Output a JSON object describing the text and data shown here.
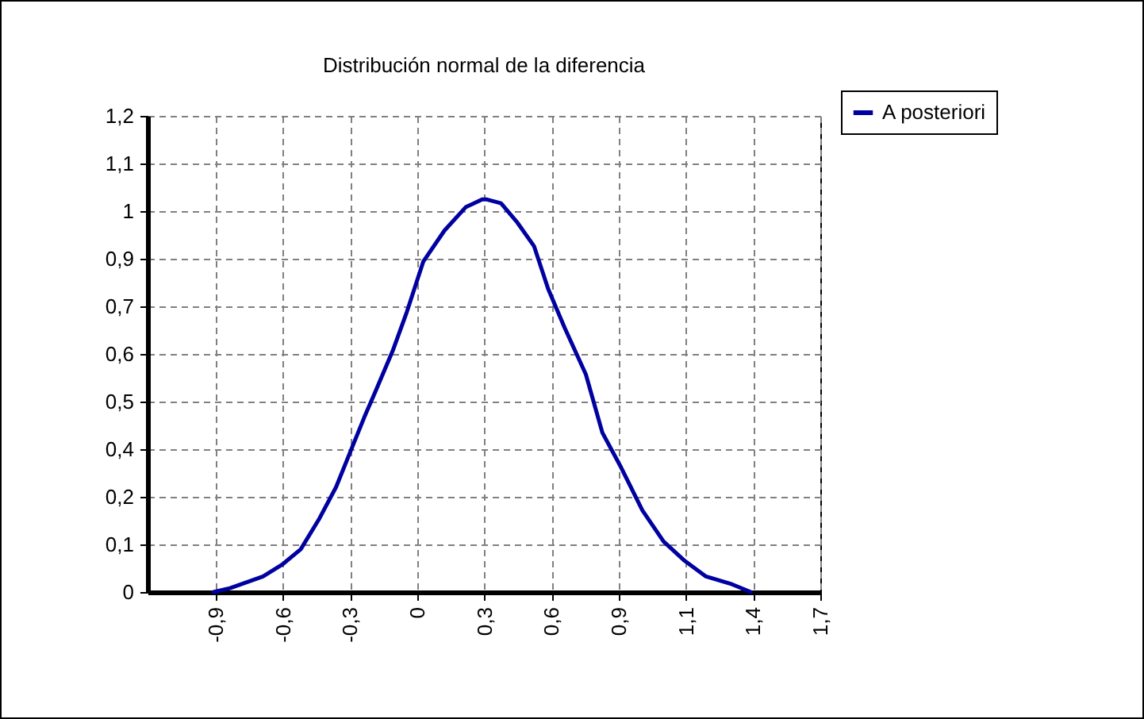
{
  "chart_data": {
    "type": "line",
    "title": "Distribución normal de la diferencia",
    "xlim": [
      -1.15,
      1.705
    ],
    "xticks": [
      {
        "value": -0.86,
        "label": "-0,9"
      },
      {
        "value": -0.575,
        "label": "-0,6"
      },
      {
        "value": -0.29,
        "label": "-0,3"
      },
      {
        "value": -0.005,
        "label": "0"
      },
      {
        "value": 0.28,
        "label": "0,3"
      },
      {
        "value": 0.565,
        "label": "0,6"
      },
      {
        "value": 0.85,
        "label": "0,9"
      },
      {
        "value": 1.135,
        "label": "1,1"
      },
      {
        "value": 1.42,
        "label": "1,4"
      },
      {
        "value": 1.705,
        "label": "1,7"
      }
    ],
    "ylim": [
      0,
      1.225
    ],
    "yticks": [
      0,
      {
        "value": 0.1225,
        "label": "0,1"
      },
      {
        "value": 0.245,
        "label": "0,2"
      },
      {
        "value": 0.3675,
        "label": "0,4"
      },
      {
        "value": 0.49,
        "label": "0,5"
      },
      {
        "value": 0.6125,
        "label": "0,6"
      },
      {
        "value": 0.735,
        "label": "0,7"
      },
      {
        "value": 0.8575,
        "label": "0,9"
      },
      {
        "value": 0.98,
        "label": "1"
      },
      {
        "value": 1.1025,
        "label": "1,1"
      },
      {
        "value": 1.225,
        "label": "1,2"
      }
    ],
    "grid": true,
    "legend": "top right",
    "marker": "none",
    "line_style": "solid",
    "series": [
      {
        "name": "A posteriori",
        "color": "#0000a0",
        "x": [
          -0.87,
          -0.8,
          -0.66,
          -0.58,
          -0.5,
          -0.42,
          -0.35,
          -0.29,
          -0.23,
          -0.18,
          -0.11,
          -0.05,
          0.02,
          0.11,
          0.2,
          0.27,
          0.29,
          0.35,
          0.42,
          0.49,
          0.55,
          0.62,
          0.71,
          0.78,
          0.86,
          0.95,
          1.04,
          1.13,
          1.22,
          1.33,
          1.41
        ],
        "values": [
          0,
          0.01,
          0.04,
          0.07,
          0.11,
          0.19,
          0.27,
          0.36,
          0.45,
          0.52,
          0.62,
          0.72,
          0.85,
          0.93,
          0.99,
          1.01,
          1.01,
          1.0,
          0.95,
          0.89,
          0.78,
          0.68,
          0.56,
          0.41,
          0.32,
          0.21,
          0.13,
          0.08,
          0.04,
          0.02,
          0
        ]
      }
    ]
  }
}
